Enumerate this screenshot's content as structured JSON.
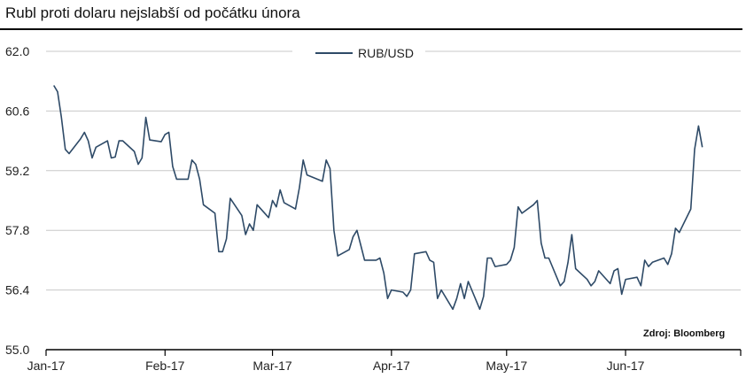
{
  "chart_data": {
    "type": "line",
    "title": "Rubl proti dolaru nejslabší od počátku února",
    "source": "Zdroj: Bloomberg",
    "ylim": [
      55.0,
      62.0
    ],
    "yticks": [
      "62.0",
      "60.6",
      "59.2",
      "57.8",
      "56.4",
      "55.0"
    ],
    "xticks": [
      {
        "label": "Jan-17",
        "day": 0
      },
      {
        "label": "Feb-17",
        "day": 31
      },
      {
        "label": "Mar-17",
        "day": 59
      },
      {
        "label": "Apr-17",
        "day": 90
      },
      {
        "label": "May-17",
        "day": 120
      },
      {
        "label": "Jun-17",
        "day": 151
      }
    ],
    "grid": true,
    "legend_position": "top-center",
    "series": [
      {
        "name": "RUB/USD",
        "color": "#2e4a67",
        "points": [
          [
            2,
            61.2
          ],
          [
            3,
            61.05
          ],
          [
            4,
            60.45
          ],
          [
            5,
            59.7
          ],
          [
            6,
            59.6
          ],
          [
            9,
            59.95
          ],
          [
            10,
            60.1
          ],
          [
            11,
            59.9
          ],
          [
            12,
            59.5
          ],
          [
            13,
            59.75
          ],
          [
            16,
            59.9
          ],
          [
            17,
            59.5
          ],
          [
            18,
            59.52
          ],
          [
            19,
            59.9
          ],
          [
            20,
            59.9
          ],
          [
            23,
            59.65
          ],
          [
            24,
            59.35
          ],
          [
            25,
            59.5
          ],
          [
            26,
            60.45
          ],
          [
            27,
            59.92
          ],
          [
            30,
            59.88
          ],
          [
            31,
            60.05
          ],
          [
            32,
            60.1
          ],
          [
            33,
            59.3
          ],
          [
            34,
            59.0
          ],
          [
            37,
            59.0
          ],
          [
            38,
            59.45
          ],
          [
            39,
            59.35
          ],
          [
            40,
            59.0
          ],
          [
            41,
            58.4
          ],
          [
            44,
            58.2
          ],
          [
            45,
            57.3
          ],
          [
            46,
            57.3
          ],
          [
            47,
            57.6
          ],
          [
            48,
            58.55
          ],
          [
            51,
            58.15
          ],
          [
            52,
            57.7
          ],
          [
            53,
            57.95
          ],
          [
            54,
            57.8
          ],
          [
            55,
            58.4
          ],
          [
            58,
            58.1
          ],
          [
            59,
            58.5
          ],
          [
            60,
            58.35
          ],
          [
            61,
            58.75
          ],
          [
            62,
            58.45
          ],
          [
            65,
            58.3
          ],
          [
            66,
            58.8
          ],
          [
            67,
            59.45
          ],
          [
            68,
            59.1
          ],
          [
            72,
            58.95
          ],
          [
            73,
            59.45
          ],
          [
            74,
            59.25
          ],
          [
            75,
            57.8
          ],
          [
            76,
            57.2
          ],
          [
            79,
            57.35
          ],
          [
            80,
            57.65
          ],
          [
            81,
            57.8
          ],
          [
            82,
            57.45
          ],
          [
            83,
            57.1
          ],
          [
            86,
            57.1
          ],
          [
            87,
            57.15
          ],
          [
            88,
            56.8
          ],
          [
            89,
            56.2
          ],
          [
            90,
            56.4
          ],
          [
            93,
            56.35
          ],
          [
            94,
            56.25
          ],
          [
            95,
            56.4
          ],
          [
            96,
            57.25
          ],
          [
            99,
            57.3
          ],
          [
            100,
            57.1
          ],
          [
            101,
            57.05
          ],
          [
            102,
            56.2
          ],
          [
            103,
            56.4
          ],
          [
            106,
            55.95
          ],
          [
            107,
            56.2
          ],
          [
            108,
            56.55
          ],
          [
            109,
            56.2
          ],
          [
            110,
            56.6
          ],
          [
            113,
            55.95
          ],
          [
            114,
            56.25
          ],
          [
            115,
            57.15
          ],
          [
            116,
            57.15
          ],
          [
            117,
            56.95
          ],
          [
            120,
            57.0
          ],
          [
            121,
            57.1
          ],
          [
            122,
            57.4
          ],
          [
            123,
            58.35
          ],
          [
            124,
            58.2
          ],
          [
            127,
            58.4
          ],
          [
            128,
            58.5
          ],
          [
            129,
            57.5
          ],
          [
            130,
            57.15
          ],
          [
            131,
            57.15
          ],
          [
            134,
            56.5
          ],
          [
            135,
            56.6
          ],
          [
            136,
            57.05
          ],
          [
            137,
            57.7
          ],
          [
            138,
            56.9
          ],
          [
            141,
            56.65
          ],
          [
            142,
            56.5
          ],
          [
            143,
            56.6
          ],
          [
            144,
            56.85
          ],
          [
            147,
            56.55
          ],
          [
            148,
            56.85
          ],
          [
            149,
            56.9
          ],
          [
            150,
            56.3
          ],
          [
            151,
            56.65
          ],
          [
            154,
            56.7
          ],
          [
            155,
            56.5
          ],
          [
            156,
            57.1
          ],
          [
            157,
            56.95
          ],
          [
            158,
            57.05
          ],
          [
            161,
            57.15
          ],
          [
            162,
            57.0
          ],
          [
            163,
            57.25
          ],
          [
            164,
            57.85
          ],
          [
            165,
            57.75
          ],
          [
            168,
            58.3
          ],
          [
            169,
            59.7
          ],
          [
            170,
            60.25
          ],
          [
            171,
            59.75
          ]
        ]
      }
    ]
  }
}
